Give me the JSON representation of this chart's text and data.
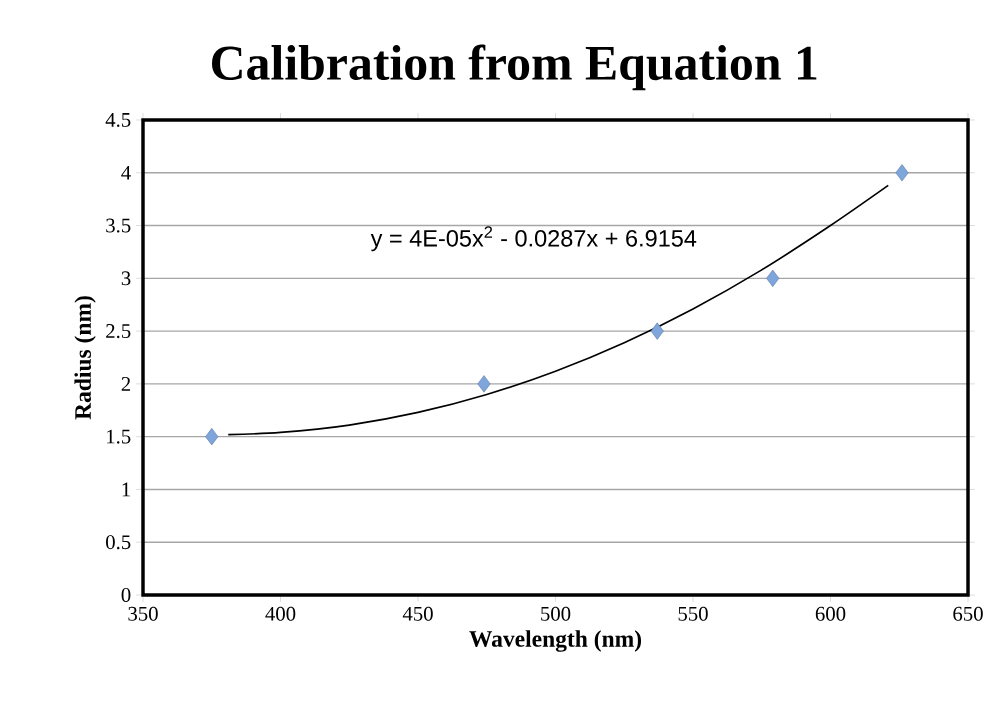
{
  "chart_data": {
    "type": "scatter",
    "title": "Calibration from Equation 1",
    "xlabel": "Wavelength (nm)",
    "ylabel": "Radius (nm)",
    "xlim": [
      350,
      650
    ],
    "xticks": [
      350,
      400,
      450,
      500,
      550,
      600,
      650
    ],
    "ylim": [
      0,
      4.5
    ],
    "yticks": [
      0,
      0.5,
      1,
      1.5,
      2,
      2.5,
      3,
      3.5,
      4,
      4.5
    ],
    "grid": "y",
    "annotations": [
      "y = 4E-05x$^{2}$ - 0.0287x + 6.9154"
    ],
    "series": [
      {
        "color": "#7ea6dc",
        "marker": "diamond",
        "x": [
          375,
          474,
          537,
          579,
          626
        ],
        "values": [
          1.5,
          2,
          2.5,
          3,
          4
        ]
      },
      {
        "type": "line",
        "color": "#000000",
        "line_style": "solid",
        "marker": "none",
        "x": [
          381,
          400,
          425,
          450,
          475,
          500,
          525,
          550,
          575,
          600,
          621
        ],
        "values": [
          1.52,
          1.54,
          1.61,
          1.73,
          1.9,
          2.12,
          2.39,
          2.71,
          3.08,
          3.5,
          3.88
        ]
      }
    ]
  }
}
